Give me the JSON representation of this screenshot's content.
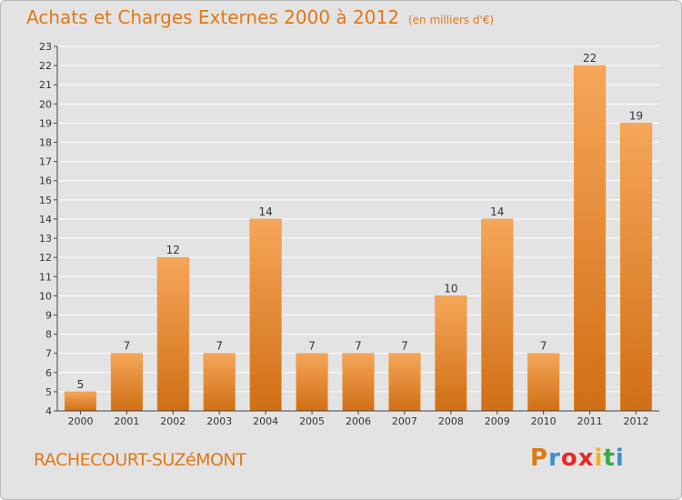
{
  "header": {
    "title": "Achats et Charges Externes 2000 à 2012",
    "unit": "(en milliers d'€)"
  },
  "footer": {
    "town": "RACHECOURT-SUZéMONT",
    "brand": "Proxiti",
    "brand_colors": [
      "#e07818",
      "#3a8fd0",
      "#e8282a",
      "#e8282a",
      "#f0b419",
      "#3aa845",
      "#3a8fd0"
    ]
  },
  "chart_data": {
    "type": "bar",
    "categories": [
      "2000",
      "2001",
      "2002",
      "2003",
      "2004",
      "2005",
      "2006",
      "2007",
      "2008",
      "2009",
      "2010",
      "2011",
      "2012"
    ],
    "values": [
      5,
      7,
      12,
      7,
      14,
      7,
      7,
      7,
      10,
      14,
      7,
      22,
      19
    ],
    "title": "Achats et Charges Externes 2000 à 2012",
    "ylim": [
      4,
      23
    ],
    "yticks": [
      4,
      5,
      6,
      7,
      8,
      9,
      10,
      11,
      12,
      13,
      14,
      15,
      16,
      17,
      18,
      19,
      20,
      21,
      22,
      23
    ],
    "grid": true,
    "data_labels": true,
    "bar_color": "#f0932e",
    "bar_color_light": "#f6a65a",
    "bar_color_dark": "#d06f15"
  }
}
